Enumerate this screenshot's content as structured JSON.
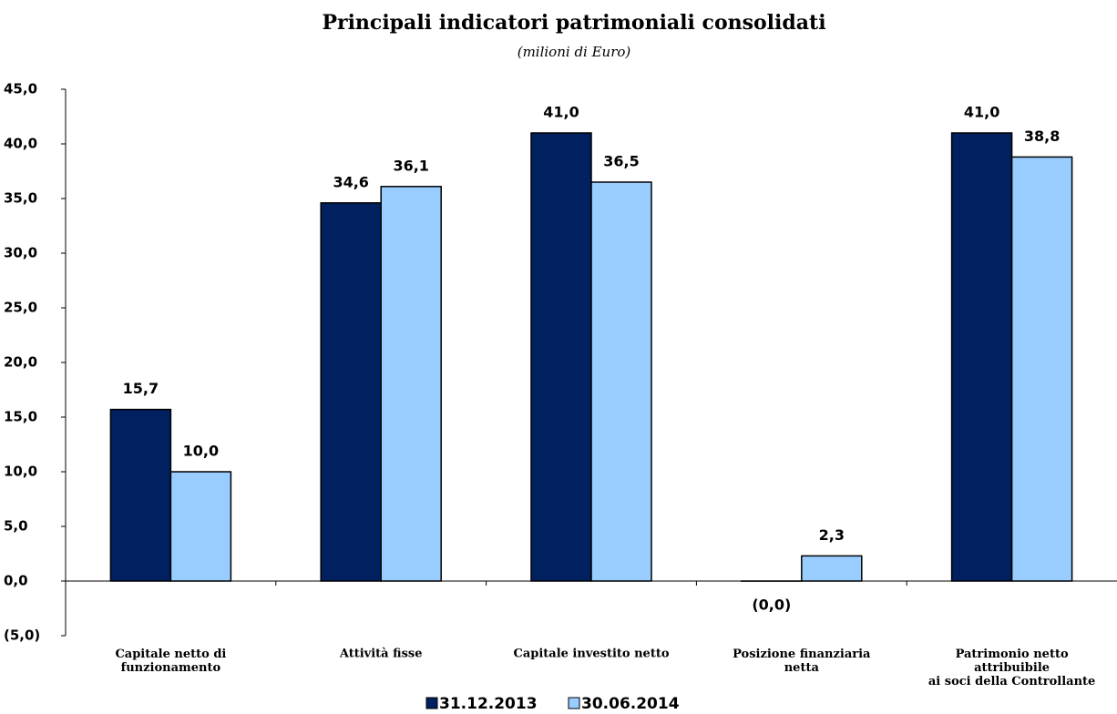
{
  "chart_data": {
    "type": "bar",
    "title": "Principali indicatori patrimoniali consolidati",
    "subtitle": "(milioni di Euro)",
    "categories": [
      "Capitale netto di\nfunzionamento",
      "Attività fisse",
      "Capitale investito netto",
      "Posizione finanziaria\nnetta",
      "Patrimonio netto\nattribuibile\nai soci della Controllante"
    ],
    "series": [
      {
        "name": "31.12.2013",
        "color": "#002060",
        "values": [
          15.7,
          34.6,
          41.0,
          -0.01,
          41.0
        ],
        "value_labels": [
          "15,7",
          "34,6",
          "41,0",
          "(0,0)",
          "41,0"
        ]
      },
      {
        "name": "30.06.2014",
        "color": "#99ccff",
        "values": [
          10.0,
          36.1,
          36.5,
          2.3,
          38.8
        ],
        "value_labels": [
          "10,0",
          "36,1",
          "36,5",
          "2,3",
          "38,8"
        ]
      }
    ],
    "ylim": [
      -5,
      45
    ],
    "yticks": [
      {
        "value": -5,
        "label": "(5,0)"
      },
      {
        "value": 0,
        "label": "0,0"
      },
      {
        "value": 5,
        "label": "5,0"
      },
      {
        "value": 10,
        "label": "10,0"
      },
      {
        "value": 15,
        "label": "15,0"
      },
      {
        "value": 20,
        "label": "20,0"
      },
      {
        "value": 25,
        "label": "25,0"
      },
      {
        "value": 30,
        "label": "30,0"
      },
      {
        "value": 35,
        "label": "35,0"
      },
      {
        "value": 40,
        "label": "40,0"
      },
      {
        "value": 45,
        "label": "45,0"
      }
    ],
    "legend": "bottom"
  }
}
